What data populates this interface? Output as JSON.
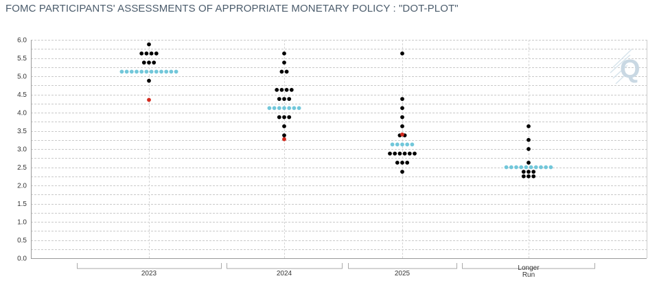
{
  "title": "FOMC PARTICIPANTS' ASSESSMENTS OF APPROPRIATE MONETARY POLICY : \"DOT-PLOT\"",
  "logo_text": "Q",
  "colors": {
    "black_dot": "#000000",
    "median_dot": "#72c7da",
    "red_dot": "#d42a1e",
    "grid": "#c8c8c8",
    "axis": "#999999",
    "logo": "#c9d8e3"
  },
  "chart_data": {
    "type": "scatter",
    "title": "FOMC PARTICIPANTS' ASSESSMENTS OF APPROPRIATE MONETARY POLICY : \"DOT-PLOT\"",
    "xlabel": "",
    "ylabel": "",
    "ylim": [
      0,
      6
    ],
    "yticks": [
      "0.0",
      "0.5",
      "1.0",
      "1.5",
      "2.0",
      "2.5",
      "3.0",
      "3.5",
      "4.0",
      "4.5",
      "5.0",
      "5.5",
      "6.0"
    ],
    "grid": true,
    "categories": [
      {
        "label": "2023",
        "label_lines": [
          "2023"
        ]
      },
      {
        "label": "2024",
        "label_lines": [
          "2024"
        ]
      },
      {
        "label": "2025",
        "label_lines": [
          "2025"
        ]
      },
      {
        "label": "Longer Run",
        "label_lines": [
          "Longer",
          "Run"
        ]
      }
    ],
    "participants": [
      {
        "category": "2023",
        "points": [
          {
            "y": 5.875,
            "n": 1
          },
          {
            "y": 5.625,
            "n": 4
          },
          {
            "y": 5.375,
            "n": 3
          },
          {
            "y": 4.875,
            "n": 1
          }
        ]
      },
      {
        "category": "2024",
        "points": [
          {
            "y": 5.625,
            "n": 1
          },
          {
            "y": 5.375,
            "n": 1
          },
          {
            "y": 5.125,
            "n": 2
          },
          {
            "y": 4.625,
            "n": 4
          },
          {
            "y": 4.375,
            "n": 3
          },
          {
            "y": 3.875,
            "n": 3
          },
          {
            "y": 3.625,
            "n": 1
          },
          {
            "y": 3.375,
            "n": 1
          }
        ]
      },
      {
        "category": "2025",
        "points": [
          {
            "y": 5.625,
            "n": 1
          },
          {
            "y": 4.375,
            "n": 1
          },
          {
            "y": 4.125,
            "n": 1
          },
          {
            "y": 3.875,
            "n": 1
          },
          {
            "y": 3.625,
            "n": 1
          },
          {
            "y": 3.375,
            "n": 2
          },
          {
            "y": 2.875,
            "n": 6
          },
          {
            "y": 2.625,
            "n": 3
          },
          {
            "y": 2.375,
            "n": 1
          }
        ]
      },
      {
        "category": "Longer Run",
        "points": [
          {
            "y": 3.625,
            "n": 1
          },
          {
            "y": 3.25,
            "n": 1
          },
          {
            "y": 3.0,
            "n": 1
          },
          {
            "y": 2.625,
            "n": 1
          },
          {
            "y": 2.375,
            "n": 3
          },
          {
            "y": 2.25,
            "n": 3
          }
        ]
      }
    ],
    "medians": [
      {
        "category": "2023",
        "y": 5.125,
        "n": 12
      },
      {
        "category": "2024",
        "y": 4.125,
        "n": 7
      },
      {
        "category": "2025",
        "y": 3.125,
        "n": 5
      },
      {
        "category": "Longer Run",
        "y": 2.5,
        "n": 10
      }
    ],
    "highlighted": [
      {
        "category": "2023",
        "y": 4.35
      },
      {
        "category": "2024",
        "y": 3.27
      },
      {
        "category": "2025",
        "y": 3.4
      }
    ]
  }
}
